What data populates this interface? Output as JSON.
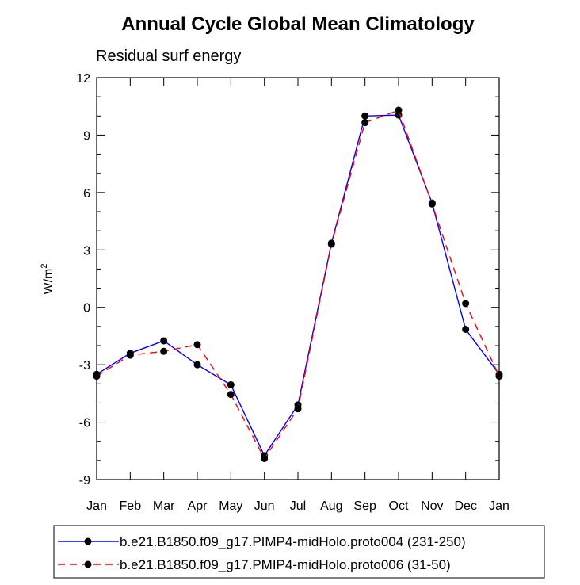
{
  "chart_data": {
    "type": "line",
    "title": "Annual Cycle Global Mean Climatology",
    "subtitle": "Residual surf energy",
    "xlabel": "",
    "ylabel": "W/m",
    "ylabel_superscript": "2",
    "categories": [
      "Jan",
      "Feb",
      "Mar",
      "Apr",
      "May",
      "Jun",
      "Jul",
      "Aug",
      "Sep",
      "Oct",
      "Nov",
      "Dec",
      "Jan"
    ],
    "ylim": [
      -9,
      12
    ],
    "yticks": [
      -9,
      -6,
      -3,
      0,
      3,
      6,
      9,
      12
    ],
    "ytick_labels": [
      "-9",
      "-6",
      "-3",
      "0",
      "3",
      "6",
      "9",
      "12"
    ],
    "grid": false,
    "legend_position": "bottom",
    "series": [
      {
        "name": "b.e21.B1850.f09_g17.PIMP4-midHolo.proto004 (231-250)",
        "color": "#0000ff",
        "dash": "solid",
        "values": [
          -3.5,
          -2.4,
          -1.75,
          -3.0,
          -4.05,
          -7.75,
          -5.1,
          3.35,
          10.0,
          10.05,
          5.45,
          -1.15,
          -3.5
        ]
      },
      {
        "name": "b.e21.B1850.f09_g17.PMIP4-midHolo.proto006 (31-50)",
        "color": "#ff0000",
        "dash": "dashed",
        "values": [
          -3.6,
          -2.5,
          -2.3,
          -1.95,
          -4.55,
          -7.9,
          -5.3,
          3.3,
          9.65,
          10.3,
          5.4,
          0.2,
          -3.6
        ]
      }
    ]
  }
}
